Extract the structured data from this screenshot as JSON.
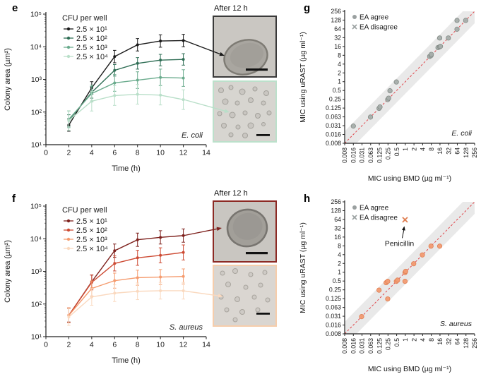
{
  "figure": {
    "panel_letters": {
      "e": "e",
      "f": "f",
      "g": "g",
      "h": "h"
    },
    "insets": {
      "e": {
        "title": "After 12 h",
        "top_border": "#3a3a3a",
        "bottom_border": "#bce0cb"
      },
      "f": {
        "title": "After 12 h",
        "top_border": "#8c2a24",
        "bottom_border": "#f6cdab"
      }
    }
  },
  "chart_data": [
    {
      "id": "e",
      "type": "line",
      "species_label": "E. coli",
      "xlabel": "Time (h)",
      "ylabel": "Colony area (µm²)",
      "x": [
        2,
        4,
        6,
        8,
        10,
        12
      ],
      "xlim": [
        0,
        14
      ],
      "xticks": [
        0,
        2,
        4,
        6,
        8,
        10,
        12,
        14
      ],
      "yscale": "log10",
      "ylim_exp": [
        1,
        5
      ],
      "ytick_labels": [
        "10¹",
        "10²",
        "10³",
        "10⁴",
        "10⁵"
      ],
      "legend_title": "CFU per well",
      "series": [
        {
          "name": "2.5 × 10¹",
          "color": "#1a1a1a",
          "values": [
            40,
            550,
            5000,
            11500,
            15000,
            15500
          ],
          "err_factor": 1.55
        },
        {
          "name": "2.5 × 10²",
          "color": "#2f6e55",
          "values": [
            55,
            400,
            1900,
            3100,
            3900,
            4100
          ],
          "err_factor": 1.5
        },
        {
          "name": "2.5 × 10³",
          "color": "#6aab8d",
          "values": [
            60,
            370,
            780,
            950,
            1150,
            1100
          ],
          "err_factor": 1.8
        },
        {
          "name": "2.5 × 10⁴",
          "color": "#b9dfc9",
          "values": [
            55,
            215,
            320,
            350,
            330,
            240
          ],
          "err_factor": 2.0
        }
      ]
    },
    {
      "id": "f",
      "type": "line",
      "species_label": "S. aureus",
      "xlabel": "Time (h)",
      "ylabel": "Colony area (µm²)",
      "x": [
        2,
        4,
        6,
        8,
        10,
        12
      ],
      "xlim": [
        0,
        14
      ],
      "xticks": [
        0,
        2,
        4,
        6,
        8,
        10,
        12,
        14
      ],
      "yscale": "log10",
      "ylim_exp": [
        1,
        5
      ],
      "ytick_labels": [
        "10¹",
        "10²",
        "10³",
        "10⁴",
        "10⁵"
      ],
      "legend_title": "CFU per well",
      "series": [
        {
          "name": "2.5 × 10¹",
          "color": "#7e211d",
          "values": [
            45,
            480,
            4300,
            9300,
            11000,
            12500
          ],
          "err_factor": 1.6
        },
        {
          "name": "2.5 × 10²",
          "color": "#cd4a33",
          "values": [
            45,
            460,
            1750,
            2600,
            3100,
            3800
          ],
          "err_factor": 1.7
        },
        {
          "name": "2.5 × 10³",
          "color": "#f59b6e",
          "values": [
            45,
            300,
            520,
            640,
            670,
            700
          ],
          "err_factor": 1.7
        },
        {
          "name": "2.5 × 10⁴",
          "color": "#fad9bf",
          "values": [
            40,
            165,
            215,
            245,
            255,
            255
          ],
          "err_factor": 1.8
        }
      ]
    },
    {
      "id": "g",
      "type": "scatter",
      "species_label": "E. coli",
      "xlabel": "MIC using BMD (µg ml⁻¹)",
      "ylabel": "MIC using uRAST (µg ml⁻¹)",
      "scale": "log2",
      "axis_min": 0.008,
      "doublings": 15,
      "tick_labels": [
        "0.008",
        "0.016",
        "0.031",
        "0.063",
        "0.125",
        "0.25",
        "0.5",
        "1",
        "2",
        "4",
        "8",
        "16",
        "32",
        "64",
        "128",
        "256"
      ],
      "legend": [
        {
          "label": "EA agree",
          "marker": "circle"
        },
        {
          "label": "EA disagree",
          "marker": "x"
        }
      ],
      "legend_marker_color": "#9aa0a0",
      "point_fill": "#a7aeab",
      "point_stroke": "#838a86",
      "band_color": "#e9e9e9",
      "line_color": "#e0474c",
      "agree_points": [
        [
          0.016,
          0.031
        ],
        [
          0.063,
          0.063
        ],
        [
          0.125,
          0.125
        ],
        [
          0.135,
          0.14
        ],
        [
          0.25,
          0.25
        ],
        [
          0.27,
          0.28
        ],
        [
          0.3,
          0.5
        ],
        [
          0.5,
          1
        ],
        [
          7.2,
          7.5
        ],
        [
          8,
          8
        ],
        [
          8.2,
          8.8
        ],
        [
          14,
          15
        ],
        [
          16,
          16
        ],
        [
          17,
          16.5
        ],
        [
          16,
          32
        ],
        [
          32,
          32
        ],
        [
          64,
          64
        ],
        [
          64,
          128
        ],
        [
          128,
          128
        ]
      ],
      "disagree_points": []
    },
    {
      "id": "h",
      "type": "scatter",
      "species_label": "S. aureus",
      "xlabel": "MIC using BMD (µg ml⁻¹)",
      "ylabel": "MIC using uRAST (µg ml⁻¹)",
      "scale": "log2",
      "axis_min": 0.008,
      "doublings": 15,
      "tick_labels": [
        "0.008",
        "0.016",
        "0.031",
        "0.063",
        "0.125",
        "0.25",
        "0.5",
        "1",
        "2",
        "4",
        "8",
        "16",
        "32",
        "64",
        "128",
        "256"
      ],
      "legend": [
        {
          "label": "EA agree",
          "marker": "circle"
        },
        {
          "label": "EA disagree",
          "marker": "x"
        }
      ],
      "legend_marker_color": "#9aa0a0",
      "point_fill": "#f29b72",
      "point_stroke": "#df7f52",
      "band_color": "#e9e9e9",
      "line_color": "#e0474c",
      "agree_points": [
        [
          0.031,
          0.031
        ],
        [
          0.125,
          0.25
        ],
        [
          0.22,
          0.45
        ],
        [
          0.25,
          0.5
        ],
        [
          0.25,
          0.125
        ],
        [
          0.5,
          0.5
        ],
        [
          0.55,
          0.55
        ],
        [
          1,
          0.5
        ],
        [
          1,
          1
        ],
        [
          1.05,
          1.1
        ],
        [
          2,
          2
        ],
        [
          4,
          4
        ],
        [
          8,
          8
        ],
        [
          16,
          8
        ]
      ],
      "disagree_points": [
        [
          1,
          64
        ]
      ],
      "annotation": {
        "text": "Penicillin"
      }
    }
  ]
}
